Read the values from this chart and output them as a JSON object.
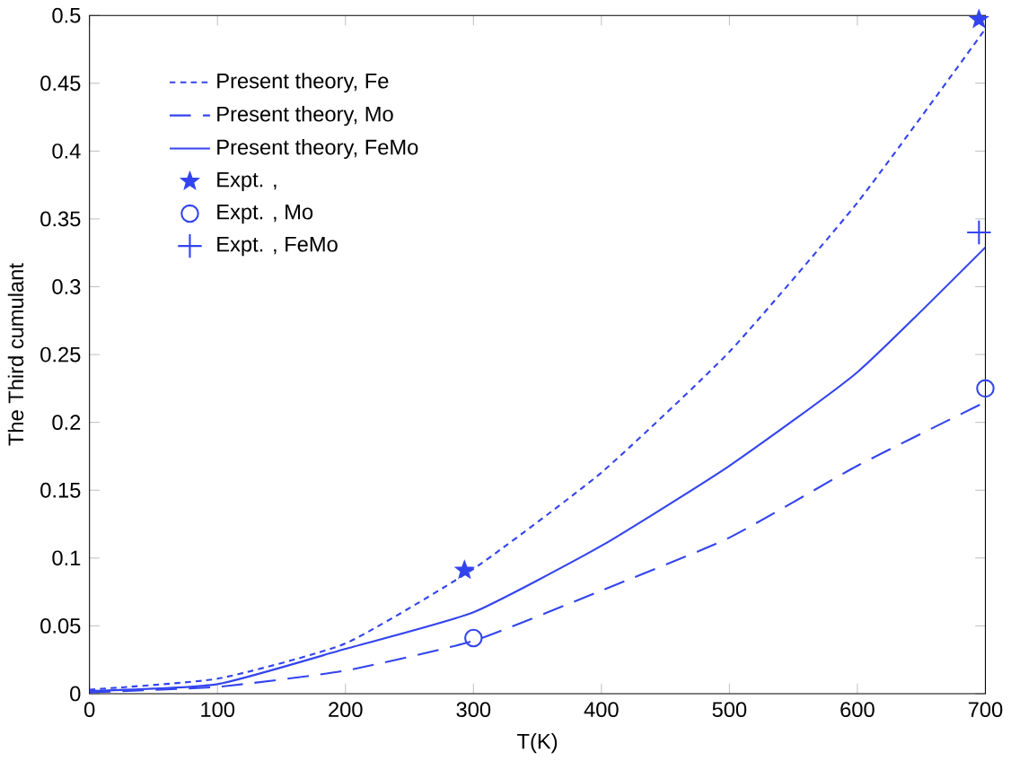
{
  "chart_data": {
    "type": "line",
    "xlabel": "T(K)",
    "ylabel": "The Third cumulant",
    "xlim": [
      0,
      700
    ],
    "ylim": [
      0,
      0.5
    ],
    "xticks": [
      0,
      100,
      200,
      300,
      400,
      500,
      600,
      700
    ],
    "yticks": [
      0,
      0.05,
      0.1,
      0.15,
      0.2,
      0.25,
      0.3,
      0.35,
      0.4,
      0.45,
      0.5
    ],
    "legend": "top left",
    "grid": false,
    "series": [
      {
        "name": "Present theory, Fe",
        "type": "line",
        "line_style": "dotted",
        "color": "#3344ee",
        "x": [
          0,
          100,
          200,
          300,
          400,
          500,
          600,
          700
        ],
        "values": [
          0.003,
          0.011,
          0.037,
          0.092,
          0.163,
          0.252,
          0.362,
          0.49
        ]
      },
      {
        "name": "Present theory, Mo",
        "type": "line",
        "line_style": "dashed",
        "color": "#3344ee",
        "x": [
          0,
          100,
          200,
          300,
          400,
          500,
          600,
          700
        ],
        "values": [
          0.001,
          0.005,
          0.017,
          0.039,
          0.076,
          0.115,
          0.168,
          0.215
        ]
      },
      {
        "name": "Present theory, FeMo",
        "type": "line",
        "line_style": "solid",
        "color": "#3344ee",
        "x": [
          0,
          100,
          200,
          300,
          400,
          500,
          600,
          700
        ],
        "values": [
          0.002,
          0.007,
          0.033,
          0.06,
          0.109,
          0.168,
          0.237,
          0.329
        ]
      },
      {
        "name": "Expt. ,",
        "type": "scatter",
        "marker": "star",
        "color": "#3344ee",
        "x": [
          293,
          695
        ],
        "values": [
          0.091,
          0.497
        ]
      },
      {
        "name": "Expt. , Mo",
        "type": "scatter",
        "marker": "circle",
        "color": "#3344ee",
        "x": [
          300,
          700
        ],
        "values": [
          0.041,
          0.225
        ]
      },
      {
        "name": "Expt. , FeMo",
        "type": "scatter",
        "marker": "cross",
        "color": "#3344ee",
        "x": [
          695
        ],
        "values": [
          0.34
        ]
      }
    ]
  }
}
